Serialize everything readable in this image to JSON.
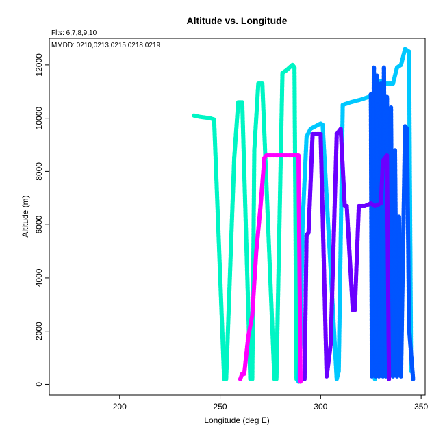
{
  "chart_data": {
    "type": "scatter",
    "title": "Altitude vs. Longitude",
    "annotations": [
      "Flts: 6,7,8,9,10",
      "MMDD: 0210,0213,0215,0218,0219"
    ],
    "xlabel": "Longitude (deg E)",
    "ylabel": "Altitude (m)",
    "xlim": [
      165,
      352
    ],
    "ylim": [
      -400,
      13000
    ],
    "xticks": [
      200,
      250,
      300,
      350
    ],
    "yticks": [
      0,
      2000,
      4000,
      6000,
      8000,
      10000,
      12000
    ],
    "grid": false,
    "series": [
      {
        "color": "#00f5c4",
        "points": [
          [
            237,
            10100
          ],
          [
            240,
            10050
          ],
          [
            245,
            10000
          ],
          [
            247,
            9950
          ],
          [
            252,
            200
          ],
          [
            253,
            200
          ],
          [
            257,
            8500
          ],
          [
            259,
            10600
          ],
          [
            261,
            10600
          ],
          [
            265,
            200
          ],
          [
            266,
            200
          ],
          [
            267,
            8800
          ],
          [
            269,
            11300
          ],
          [
            271,
            11300
          ],
          [
            277,
            200
          ],
          [
            278,
            200
          ],
          [
            281,
            11700
          ],
          [
            283,
            11800
          ],
          [
            286,
            12000
          ],
          [
            287,
            11900
          ],
          [
            288,
            200
          ]
        ]
      },
      {
        "color": "#00c8ff",
        "points": [
          [
            289,
            100
          ],
          [
            290,
            1500
          ],
          [
            291,
            6000
          ],
          [
            293,
            9300
          ],
          [
            295,
            9600
          ],
          [
            300,
            9800
          ],
          [
            301,
            9750
          ],
          [
            308,
            200
          ],
          [
            309,
            500
          ],
          [
            311,
            10500
          ],
          [
            315,
            10600
          ],
          [
            320,
            10700
          ],
          [
            324,
            10800
          ],
          [
            325,
            10850
          ],
          [
            327,
            200
          ],
          [
            330,
            11400
          ],
          [
            332,
            11300
          ],
          [
            336,
            11300
          ],
          [
            338,
            11900
          ],
          [
            340,
            12000
          ],
          [
            342,
            12600
          ],
          [
            344,
            12500
          ],
          [
            345,
            500
          ]
        ]
      },
      {
        "color": "#0055ff",
        "points": [
          [
            325,
            10900
          ],
          [
            325.5,
            300
          ],
          [
            326.5,
            11900
          ],
          [
            327.5,
            300
          ],
          [
            328,
            11600
          ],
          [
            329,
            300
          ],
          [
            330,
            11300
          ],
          [
            331,
            300
          ],
          [
            331.5,
            11900
          ],
          [
            332.5,
            300
          ],
          [
            333,
            10800
          ],
          [
            334,
            300
          ],
          [
            335,
            10400
          ],
          [
            336,
            300
          ],
          [
            337,
            8800
          ],
          [
            338,
            300
          ],
          [
            339,
            6300
          ],
          [
            340,
            300
          ],
          [
            342,
            9700
          ],
          [
            343,
            9600
          ],
          [
            344,
            2100
          ],
          [
            346,
            200
          ]
        ]
      },
      {
        "color": "#6a00ff",
        "points": [
          [
            292,
            200
          ],
          [
            293,
            5600
          ],
          [
            294,
            5700
          ],
          [
            296,
            9400
          ],
          [
            299,
            9400
          ],
          [
            300,
            9400
          ],
          [
            303,
            300
          ],
          [
            305,
            1500
          ],
          [
            308,
            9400
          ],
          [
            310,
            9600
          ],
          [
            312,
            6700
          ],
          [
            313,
            6700
          ],
          [
            316,
            2800
          ],
          [
            317,
            2800
          ],
          [
            319,
            6700
          ],
          [
            322,
            6700
          ],
          [
            325,
            6800
          ],
          [
            327,
            6700
          ],
          [
            330,
            6800
          ],
          [
            331,
            8400
          ],
          [
            333,
            8600
          ],
          [
            334,
            200
          ]
        ]
      },
      {
        "color": "#ff00ff",
        "points": [
          [
            260,
            200
          ],
          [
            261,
            400
          ],
          [
            262,
            400
          ],
          [
            264,
            1800
          ],
          [
            266,
            2600
          ],
          [
            268,
            5000
          ],
          [
            270,
            6600
          ],
          [
            272,
            8500
          ],
          [
            273,
            8600
          ],
          [
            280,
            8600
          ],
          [
            288,
            8600
          ],
          [
            289,
            8600
          ],
          [
            290,
            100
          ]
        ]
      }
    ]
  }
}
